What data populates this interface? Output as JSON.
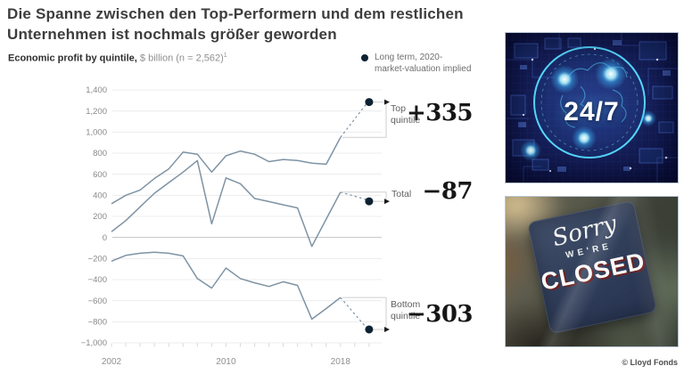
{
  "header": {
    "title_line1": "Die Spanne zwischen den Top-Performern und dem restlichen",
    "title_line2": "Unternehmen ist nochmals größer geworden"
  },
  "chart": {
    "subtitle_bold": "Economic profit by quintile,",
    "subtitle_rest": " $ billion (n = 2,562)",
    "footnote_sup": "1",
    "legend": {
      "line1": "Long term, 2020-",
      "line2": "market-valuation implied"
    },
    "annotations": [
      {
        "line1": "Top",
        "line2": "quintile"
      },
      {
        "line1": "Total",
        "line2": ""
      },
      {
        "line1": "Bottom",
        "line2": "quintile"
      }
    ]
  },
  "chart_data": {
    "type": "line",
    "title": "Economic profit by quintile, $ billion (n = 2,562)",
    "x_start_year": 2002,
    "x_end_year": 2020,
    "x_tick_labels": [
      {
        "year": 2002,
        "label": "2002"
      },
      {
        "year": 2010,
        "label": "2010"
      },
      {
        "year": 2018,
        "label": "2018"
      }
    ],
    "ylim": [
      -1000,
      1400
    ],
    "y_ticks": [
      {
        "value": 1400,
        "label": "1,400"
      },
      {
        "value": 1200,
        "label": "1,200"
      },
      {
        "value": 1000,
        "label": "1,000"
      },
      {
        "value": 800,
        "label": "800"
      },
      {
        "value": 600,
        "label": "600"
      },
      {
        "value": 400,
        "label": "400"
      },
      {
        "value": 200,
        "label": "200"
      },
      {
        "value": 0,
        "label": "0"
      },
      {
        "value": -200,
        "label": "−200"
      },
      {
        "value": -400,
        "label": "−400"
      },
      {
        "value": -600,
        "label": "−600"
      },
      {
        "value": -800,
        "label": "−800"
      },
      {
        "value": -1000,
        "label": "−1,000"
      }
    ],
    "series": [
      {
        "name": "Top quintile",
        "years_start": 2002,
        "values": [
          320,
          400,
          450,
          560,
          650,
          810,
          790,
          620,
          775,
          820,
          790,
          720,
          740,
          730,
          705,
          695,
          950
        ],
        "implied_2020": 1285,
        "delta_label": "+335"
      },
      {
        "name": "Total",
        "years_start": 2002,
        "values": [
          55,
          160,
          290,
          420,
          520,
          620,
          730,
          130,
          565,
          510,
          370,
          340,
          310,
          280,
          -85,
          175,
          430
        ],
        "implied_2020": 343,
        "delta_label": "−87"
      },
      {
        "name": "Bottom quintile",
        "years_start": 2002,
        "values": [
          -225,
          -170,
          -150,
          -140,
          -150,
          -175,
          -390,
          -480,
          -290,
          -390,
          -430,
          -465,
          -420,
          -455,
          -775,
          -675,
          -570
        ],
        "implied_2020": -873,
        "delta_label": "−303"
      }
    ],
    "implied_point_legend": "Long term, 2020-market-valuation implied",
    "line_color": "#7e93a4",
    "dot_color": "#0d2232",
    "grid_color": "#ececec",
    "zero_line_color": "#c2c2c2",
    "bracket_color": "#cfcfcf"
  },
  "figures": {
    "ai": {
      "label": "24/7"
    },
    "closed": {
      "line1": "Sorry",
      "line2": "WE'RE",
      "line3": "CLOSED"
    }
  },
  "footer": {
    "credit": "© Lloyd Fonds"
  }
}
